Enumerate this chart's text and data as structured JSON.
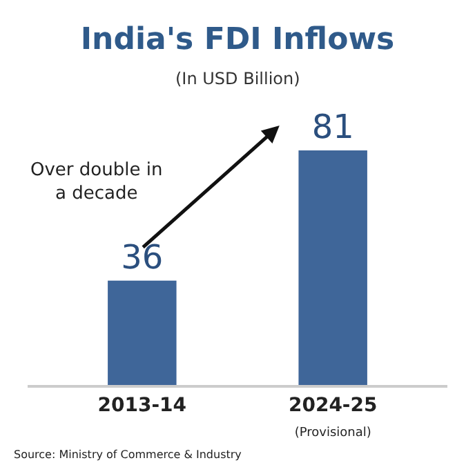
{
  "chart_data": {
    "type": "bar",
    "title": "India's FDI Inflows",
    "subtitle": "(In USD Billion)",
    "categories": [
      "2013-14",
      "2024-25\n(Provisional)"
    ],
    "values": [
      36,
      81
    ],
    "color": "#3f6699",
    "data_labels": true,
    "annotations": [
      "Over double in\na decade",
      "Source: Ministry of Commerce & Industry"
    ]
  }
}
